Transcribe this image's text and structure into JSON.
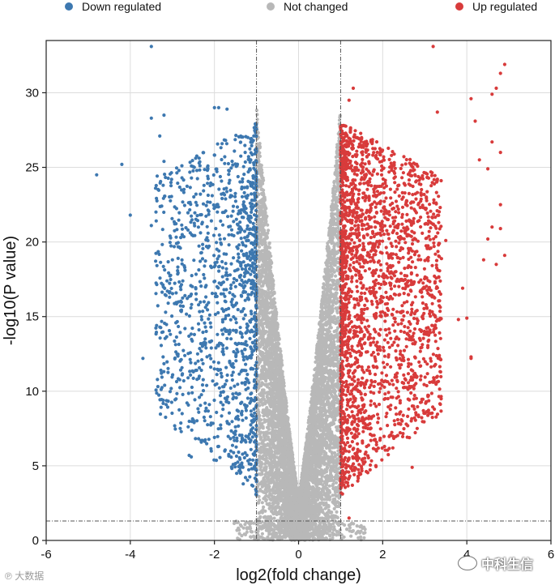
{
  "chart_data": {
    "type": "scatter",
    "title": "",
    "xlabel": "log2(fold change)",
    "ylabel": "-log10(P value)",
    "xlim": [
      -6,
      6
    ],
    "ylim": [
      0,
      33.5
    ],
    "xticks": [
      -6,
      -4,
      -2,
      0,
      2,
      4,
      6
    ],
    "yticks": [
      0,
      5,
      10,
      15,
      20,
      25,
      30
    ],
    "grid": true,
    "legend_position": "top",
    "fc_threshold_lines": [
      -1,
      1
    ],
    "p_threshold_line": 1.3,
    "series": [
      {
        "name": "Down regulated",
        "color": "#3d78b0",
        "points": [
          [
            -3.5,
            33.1
          ],
          [
            -4.8,
            24.5
          ],
          [
            -4.2,
            25.2
          ],
          [
            -4.0,
            21.8
          ],
          [
            -3.7,
            12.2
          ],
          [
            -3.5,
            21.1
          ],
          [
            -3.4,
            23.6
          ],
          [
            -3.5,
            28.3
          ],
          [
            -3.2,
            28.5
          ],
          [
            -3.3,
            27.1
          ],
          [
            -3.2,
            25.4
          ],
          [
            -3.1,
            15.9
          ],
          [
            -3.0,
            18.8
          ],
          [
            -2.9,
            19.9
          ],
          [
            -2.8,
            20.3
          ],
          [
            -2.8,
            15.4
          ],
          [
            -2.7,
            16.4
          ],
          [
            -2.7,
            14.2
          ],
          [
            -2.6,
            5.7
          ],
          [
            -2.55,
            5.6
          ],
          [
            -2.5,
            11.3
          ],
          [
            -2.4,
            12.5
          ],
          [
            -2.3,
            12.1
          ],
          [
            -2.2,
            12.9
          ],
          [
            -2.1,
            13.3
          ],
          [
            -2.0,
            6.9
          ],
          [
            -1.9,
            6.3
          ],
          [
            -2.0,
            29.0
          ],
          [
            -1.9,
            29.0
          ],
          [
            -1.7,
            28.9
          ]
        ]
      },
      {
        "name": "Not changed",
        "color": "#b8b8b8",
        "points": []
      },
      {
        "name": "Up regulated",
        "color": "#d83b3b",
        "points": [
          [
            3.2,
            33.1
          ],
          [
            4.9,
            31.9
          ],
          [
            4.8,
            31.3
          ],
          [
            4.7,
            30.3
          ],
          [
            4.6,
            29.9
          ],
          [
            4.1,
            29.6
          ],
          [
            3.3,
            28.7
          ],
          [
            4.2,
            28.1
          ],
          [
            4.6,
            26.7
          ],
          [
            4.8,
            26.0
          ],
          [
            4.3,
            25.5
          ],
          [
            4.5,
            24.9
          ],
          [
            4.8,
            22.5
          ],
          [
            4.6,
            21.0
          ],
          [
            4.8,
            20.9
          ],
          [
            4.5,
            20.2
          ],
          [
            3.5,
            20.1
          ],
          [
            4.4,
            18.8
          ],
          [
            4.9,
            19.1
          ],
          [
            4.7,
            18.5
          ],
          [
            3.9,
            16.9
          ],
          [
            4.0,
            14.9
          ],
          [
            3.8,
            14.8
          ],
          [
            4.1,
            12.3
          ],
          [
            4.1,
            12.2
          ],
          [
            3.2,
            10.6
          ],
          [
            2.7,
            4.9
          ],
          [
            1.2,
            1.5
          ],
          [
            1.3,
            30.3
          ],
          [
            1.2,
            29.5
          ]
        ]
      }
    ]
  },
  "legend": [
    {
      "label": "Down regulated",
      "color": "#3d78b0"
    },
    {
      "label": "Not changed",
      "color": "#b8b8b8"
    },
    {
      "label": "Up regulated",
      "color": "#d83b3b"
    }
  ],
  "watermarks": {
    "left": "大数据",
    "right": "中科生信"
  }
}
